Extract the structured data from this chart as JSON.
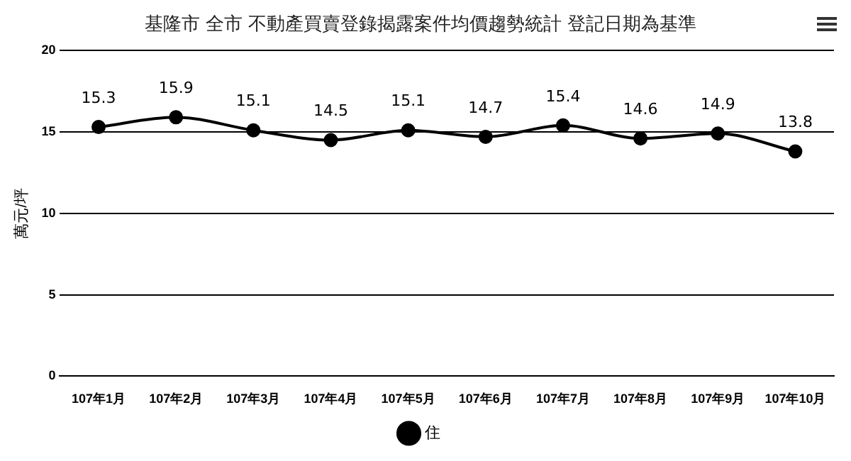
{
  "chart_data": {
    "type": "line",
    "title": "基隆市 全市 不動產買賣登錄揭露案件均價趨勢統計 登記日期為基準",
    "ylabel": "萬元/坪",
    "categories": [
      "107年1月",
      "107年2月",
      "107年3月",
      "107年4月",
      "107年5月",
      "107年6月",
      "107年7月",
      "107年8月",
      "107年9月",
      "107年10月"
    ],
    "series": [
      {
        "name": "住",
        "color": "#000000",
        "values": [
          15.3,
          15.9,
          15.1,
          14.5,
          15.1,
          14.7,
          15.4,
          14.6,
          14.9,
          13.8
        ]
      }
    ],
    "ylim": [
      0,
      20
    ],
    "yticks": [
      0,
      5,
      10,
      15,
      20
    ],
    "grid": "y",
    "legend": "bottom",
    "marker": "circle",
    "line_style": "solid",
    "data_labels": true
  }
}
